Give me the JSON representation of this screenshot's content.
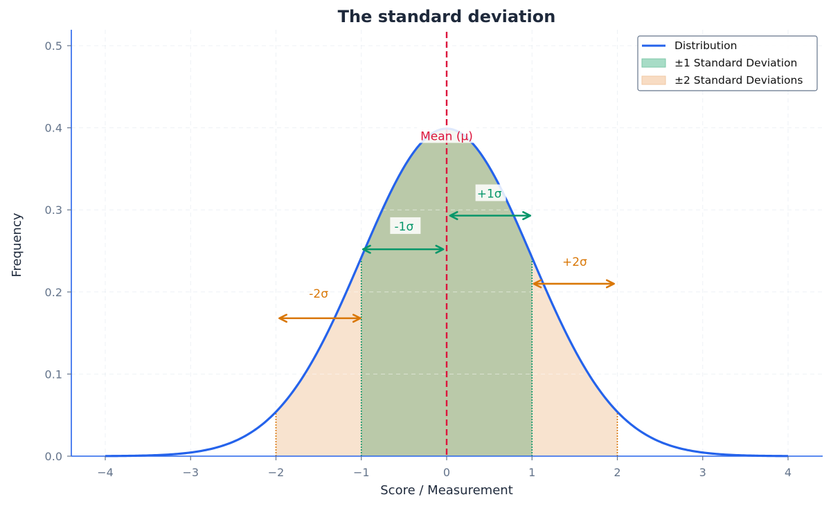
{
  "chart_data": {
    "type": "line",
    "title": "The standard deviation",
    "xlabel": "Score / Measurement",
    "ylabel": "Frequency",
    "xlim": [
      -4.4,
      4.4
    ],
    "ylim": [
      0,
      0.52
    ],
    "xticks": [
      -4,
      -3,
      -2,
      -1,
      0,
      1,
      2,
      3,
      4
    ],
    "xtick_labels": [
      "−4",
      "−3",
      "−2",
      "−1",
      "0",
      "1",
      "2",
      "3",
      "4"
    ],
    "yticks": [
      0.0,
      0.1,
      0.2,
      0.3,
      0.4,
      0.5
    ],
    "ytick_labels": [
      "0.0",
      "0.1",
      "0.2",
      "0.3",
      "0.4",
      "0.5"
    ],
    "grid": true,
    "legend_position": "upper right",
    "series": [
      {
        "name": "Distribution",
        "kind": "line",
        "color": "#2563eb",
        "function": "normal_pdf",
        "mean": 0,
        "std": 1,
        "x": [
          -4,
          -3.5,
          -3,
          -2.5,
          -2,
          -1.5,
          -1,
          -0.5,
          0,
          0.5,
          1,
          1.5,
          2,
          2.5,
          3,
          3.5,
          4
        ],
        "values": [
          0.0001,
          0.0009,
          0.0044,
          0.0175,
          0.054,
          0.1295,
          0.242,
          0.3521,
          0.3989,
          0.3521,
          0.242,
          0.1295,
          0.054,
          0.0175,
          0.0044,
          0.0009,
          0.0001
        ]
      },
      {
        "name": "±1 Standard Deviation",
        "kind": "area",
        "color": "#10b981",
        "fill_alpha": 0.3,
        "x_range": [
          -1,
          1
        ]
      },
      {
        "name": "±2 Standard Deviations",
        "kind": "area",
        "color": "#f4a261",
        "fill_alpha": 0.3,
        "x_range": [
          -2,
          2
        ]
      }
    ],
    "annotations": [
      {
        "text": "Mean (μ)",
        "x": 0,
        "y": 0.39,
        "color": "#dc143c",
        "kind": "vline-label"
      },
      {
        "text": "-1σ",
        "x": -0.5,
        "y": 0.28,
        "color": "#059669",
        "arrow_from": [
          -0.05,
          0.252
        ],
        "arrow_to": [
          -0.97,
          0.252
        ]
      },
      {
        "text": "+1σ",
        "x": 0.5,
        "y": 0.32,
        "color": "#059669",
        "arrow_from": [
          0.05,
          0.293
        ],
        "arrow_to": [
          0.97,
          0.293
        ]
      },
      {
        "text": "-2σ",
        "x": -1.5,
        "y": 0.198,
        "color": "#d97706",
        "arrow_from": [
          -1.95,
          0.168
        ],
        "arrow_to": [
          -1.02,
          0.168
        ]
      },
      {
        "text": "+2σ",
        "x": 1.5,
        "y": 0.237,
        "color": "#d97706",
        "arrow_from": [
          1.03,
          0.21
        ],
        "arrow_to": [
          1.95,
          0.21
        ]
      }
    ],
    "vlines": [
      {
        "x": 0,
        "color": "#dc143c",
        "style": "dashed",
        "label": "mean"
      },
      {
        "x": -1,
        "color": "#059669",
        "style": "dotted"
      },
      {
        "x": 1,
        "color": "#059669",
        "style": "dotted"
      },
      {
        "x": -2,
        "color": "#d97706",
        "style": "dotted"
      },
      {
        "x": 2,
        "color": "#d97706",
        "style": "dotted"
      }
    ]
  },
  "legend": {
    "items": [
      {
        "label": "Distribution",
        "swatch": "line",
        "color": "#2563eb"
      },
      {
        "label": "±1 Standard Deviation",
        "swatch": "patch",
        "color": "#a7dcc6",
        "edge": "#7cc7a8"
      },
      {
        "label": "±2 Standard Deviations",
        "swatch": "patch",
        "color": "#f8dcc3",
        "edge": "#f0c7a3"
      }
    ]
  },
  "colors": {
    "curve": "#2563eb",
    "mean_line": "#dc143c",
    "sigma1": "#059669",
    "sigma2": "#d97706",
    "fill1": "#bac9a9",
    "fill2": "#f8e3cf",
    "axis_spine": "#2563eb",
    "tick_text": "#64748b",
    "title_text": "#1e293b"
  }
}
